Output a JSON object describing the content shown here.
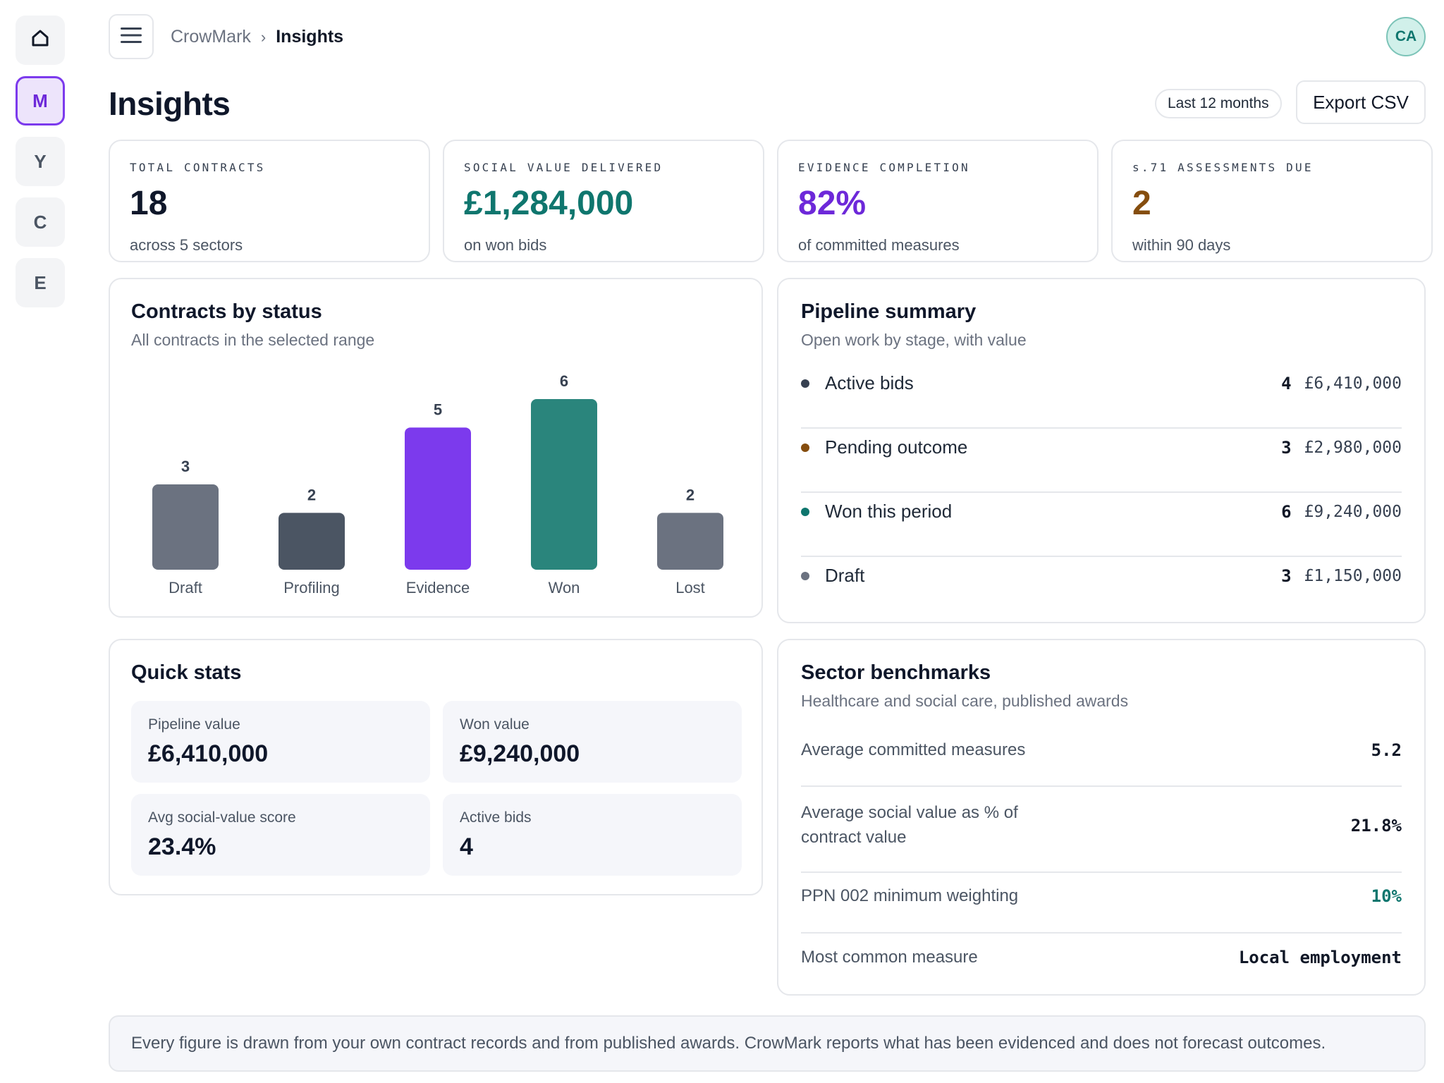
{
  "nav": {
    "rail": [
      {
        "label": "",
        "icon": "home-icon"
      },
      {
        "label": "M"
      },
      {
        "label": "Y"
      },
      {
        "label": "C"
      },
      {
        "label": "E"
      }
    ]
  },
  "header": {
    "breadcrumb_root": "CrowMark",
    "breadcrumb_sep": "›",
    "breadcrumb_current": "Insights",
    "avatar_initials": "CA",
    "page_title": "Insights",
    "range_label": "Last 12 months",
    "export_label": "Export CSV"
  },
  "kpis": [
    {
      "label": "TOTAL CONTRACTS",
      "value": "18",
      "sub": "across 5 sectors",
      "color": "#0f172a"
    },
    {
      "label": "SOCIAL VALUE DELIVERED",
      "value": "£1,284,000",
      "sub": "on won bids",
      "color": "#0f766e"
    },
    {
      "label": "EVIDENCE COMPLETION",
      "value": "82%",
      "sub": "of committed measures",
      "color": "#6d28d9"
    },
    {
      "label": "s.71 ASSESSMENTS DUE",
      "value": "2",
      "sub": "within 90 days",
      "color": "#854d0e"
    }
  ],
  "status_panel": {
    "title": "Contracts by status",
    "subtitle": "All contracts in the selected range"
  },
  "chart_data": {
    "type": "bar",
    "title": "Contracts by status",
    "categories": [
      "Draft",
      "Profiling",
      "Evidence",
      "Won",
      "Lost"
    ],
    "values": [
      3,
      2,
      5,
      6,
      2
    ],
    "value_labels": [
      "3",
      "2",
      "5",
      "6",
      "2"
    ],
    "colors": [
      "#6b7280",
      "#4b5563",
      "#7c3aed",
      "#2a857c",
      "#6b7280"
    ],
    "ylim": [
      0,
      6
    ],
    "grid": false,
    "xlabel": "",
    "ylabel": ""
  },
  "pipeline": {
    "title": "Pipeline summary",
    "subtitle": "Open work by stage, with value",
    "rows": [
      {
        "name": "Active bids",
        "count": "4",
        "amount": "£6,410,000",
        "color": "#374151"
      },
      {
        "name": "Pending outcome",
        "count": "3",
        "amount": "£2,980,000",
        "color": "#854d0e"
      },
      {
        "name": "Won this period",
        "count": "6",
        "amount": "£9,240,000",
        "color": "#0f766e"
      },
      {
        "name": "Draft",
        "count": "3",
        "amount": "£1,150,000",
        "color": "#6b7280"
      }
    ]
  },
  "quick_stats": {
    "title": "Quick stats",
    "items": [
      {
        "label": "Pipeline value",
        "value": "£6,410,000"
      },
      {
        "label": "Won value",
        "value": "£9,240,000"
      },
      {
        "label": "Avg social-value score",
        "value": "23.4%"
      },
      {
        "label": "Active bids",
        "value": "4"
      }
    ]
  },
  "benchmarks": {
    "title": "Sector benchmarks",
    "subtitle": "Healthcare and social care, published awards",
    "rows": [
      {
        "label": "Average committed measures",
        "value": "5.2",
        "color": "#111827"
      },
      {
        "label": "Average social value as % of contract value",
        "value": "21.8%",
        "color": "#111827"
      },
      {
        "label": "PPN 002 minimum weighting",
        "value": "10%",
        "color": "#0f766e"
      },
      {
        "label": "Most common measure",
        "value": "Local employment",
        "color": "#111827"
      }
    ]
  },
  "footer": {
    "note": "Every figure is drawn from your own contract records and from published awards. CrowMark reports what has been evidenced and does not forecast outcomes."
  }
}
